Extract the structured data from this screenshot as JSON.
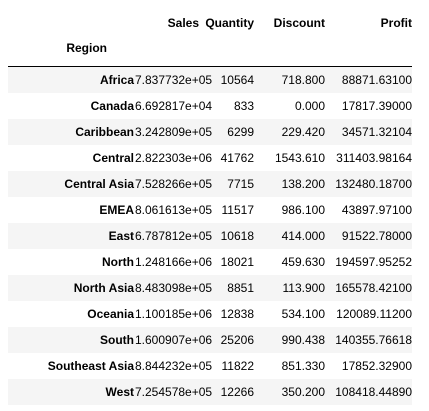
{
  "table": {
    "columns": [
      "Sales",
      "Quantity",
      "Discount",
      "Profit"
    ],
    "index_name": "Region",
    "rows": [
      {
        "region": "Africa",
        "sales": "7.837732e+05",
        "quantity": "10564",
        "discount": "718.800",
        "profit": "88871.63100"
      },
      {
        "region": "Canada",
        "sales": "6.692817e+04",
        "quantity": "833",
        "discount": "0.000",
        "profit": "17817.39000"
      },
      {
        "region": "Caribbean",
        "sales": "3.242809e+05",
        "quantity": "6299",
        "discount": "229.420",
        "profit": "34571.32104"
      },
      {
        "region": "Central",
        "sales": "2.822303e+06",
        "quantity": "41762",
        "discount": "1543.610",
        "profit": "311403.98164"
      },
      {
        "region": "Central Asia",
        "sales": "7.528266e+05",
        "quantity": "7715",
        "discount": "138.200",
        "profit": "132480.18700"
      },
      {
        "region": "EMEA",
        "sales": "8.061613e+05",
        "quantity": "11517",
        "discount": "986.100",
        "profit": "43897.97100"
      },
      {
        "region": "East",
        "sales": "6.787812e+05",
        "quantity": "10618",
        "discount": "414.000",
        "profit": "91522.78000"
      },
      {
        "region": "North",
        "sales": "1.248166e+06",
        "quantity": "18021",
        "discount": "459.630",
        "profit": "194597.95252"
      },
      {
        "region": "North Asia",
        "sales": "8.483098e+05",
        "quantity": "8851",
        "discount": "113.900",
        "profit": "165578.42100"
      },
      {
        "region": "Oceania",
        "sales": "1.100185e+06",
        "quantity": "12838",
        "discount": "534.100",
        "profit": "120089.11200"
      },
      {
        "region": "South",
        "sales": "1.600907e+06",
        "quantity": "25206",
        "discount": "990.438",
        "profit": "140355.76618"
      },
      {
        "region": "Southeast Asia",
        "sales": "8.844232e+05",
        "quantity": "11822",
        "discount": "851.330",
        "profit": "17852.32900"
      },
      {
        "region": "West",
        "sales": "7.254578e+05",
        "quantity": "12266",
        "discount": "350.200",
        "profit": "108418.44890"
      }
    ]
  }
}
